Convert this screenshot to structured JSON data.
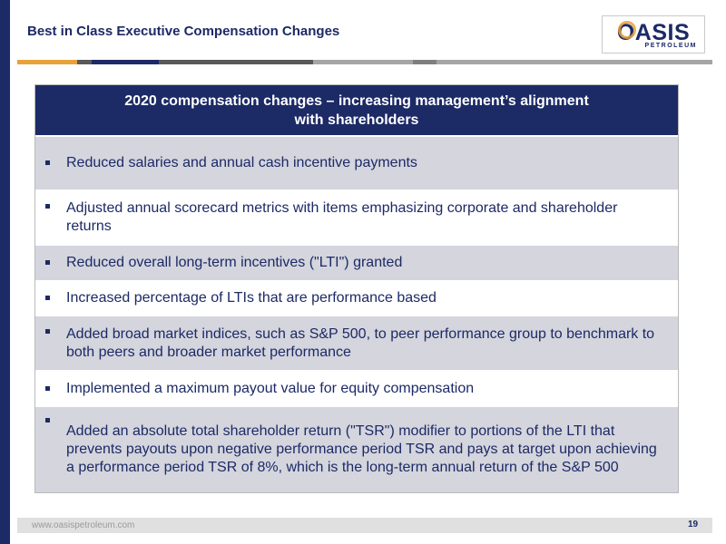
{
  "slide": {
    "title": "Best in Class Executive Compensation Changes",
    "page_number": "19",
    "footer_url": "www.oasispetroleum.com"
  },
  "logo": {
    "word": "OASIS",
    "subword": "PETROLEUM"
  },
  "colors": {
    "navy": "#1c2a66",
    "orange": "#e9a23b",
    "row_shade": "#d4d5dd",
    "rule_gray": "#a5a5a5",
    "rule_dark": "#595959"
  },
  "panel": {
    "header_line1": "2020 compensation changes – increasing management’s alignment",
    "header_line2": "with shareholders",
    "bullets": [
      "Reduced salaries and annual cash incentive payments",
      "Adjusted annual scorecard metrics with items emphasizing corporate and shareholder returns",
      "Reduced overall long-term incentives (\"LTI\") granted",
      "Increased percentage of LTIs that are performance based",
      "Added broad market indices, such as S&P 500, to peer performance group to benchmark to both peers and broader market performance",
      "Implemented a maximum payout value for equity compensation",
      "Added an absolute total shareholder return (\"TSR\") modifier to portions of the LTI that prevents payouts upon negative performance period TSR and pays at target upon achieving a performance period TSR of 8%, which is the long-term annual return of the S&P 500"
    ]
  }
}
